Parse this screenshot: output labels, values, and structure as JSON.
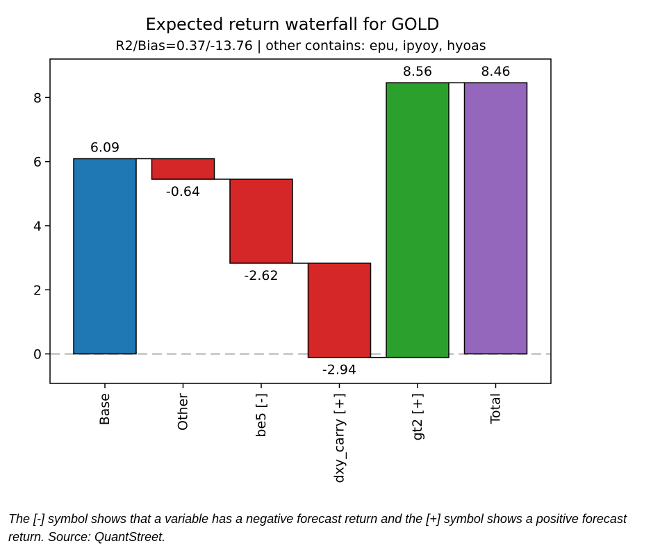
{
  "chart_data": {
    "type": "bar",
    "subtype": "waterfall",
    "title": "Expected return waterfall for GOLD",
    "subtitle": "R2/Bias=0.37/-13.76 | other contains: epu, ipyoy, hyoas",
    "xlabel": "",
    "ylabel": "",
    "categories": [
      "Base",
      "Other",
      "be5 [-]",
      "dxy_carry [+]",
      "gt2 [+]",
      "Total"
    ],
    "bars": [
      {
        "label": "Base",
        "bottom": 0,
        "top": 6.09,
        "value_label": "6.09",
        "kind": "base"
      },
      {
        "label": "Other",
        "bottom": 5.45,
        "top": 6.09,
        "value_label": "-0.64",
        "kind": "negative"
      },
      {
        "label": "be5 [-]",
        "bottom": 2.83,
        "top": 5.45,
        "value_label": "-2.62",
        "kind": "negative"
      },
      {
        "label": "dxy_carry [+]",
        "bottom": -0.11,
        "top": 2.83,
        "value_label": "-2.94",
        "kind": "negative"
      },
      {
        "label": "gt2 [+]",
        "bottom": -0.11,
        "top": 8.46,
        "value_label": "8.56",
        "kind": "positive"
      },
      {
        "label": "Total",
        "bottom": 0,
        "top": 8.46,
        "value_label": "8.46",
        "kind": "total"
      }
    ],
    "ylim": [
      -0.92,
      9.2
    ],
    "yticks": [
      0,
      2,
      4,
      6,
      8
    ],
    "colors": {
      "base": "#1f77b4",
      "negative": "#d62728",
      "positive": "#2ca02c",
      "total": "#9467bd",
      "zero_line": "#cccccc"
    },
    "grid": false,
    "legend": "none"
  },
  "caption": "The [-] symbol shows that a variable has a negative forecast return and the [+] symbol shows a positive forecast return. Source: QuantStreet."
}
